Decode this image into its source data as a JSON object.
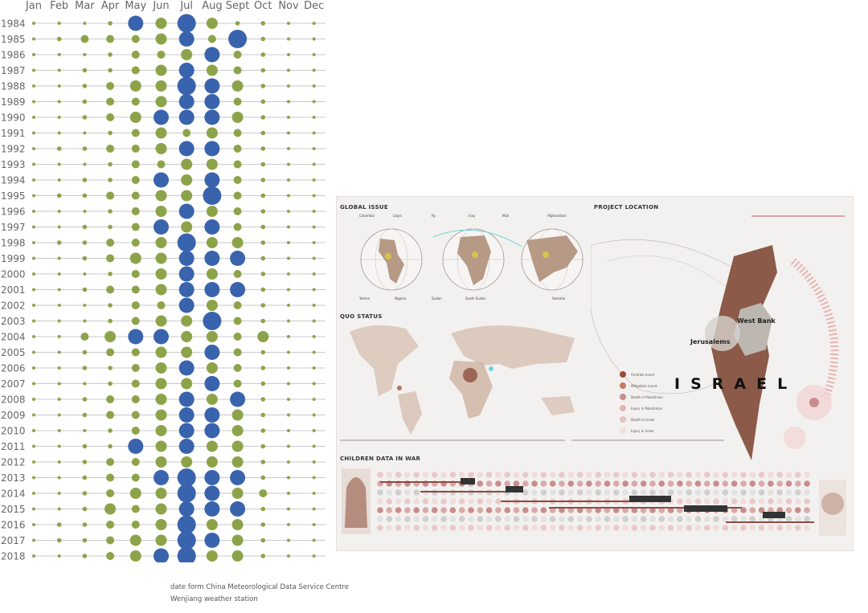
{
  "chart_data": {
    "type": "scatter",
    "months": [
      "Jan",
      "Feb",
      "Mar",
      "Apr",
      "May",
      "Jun",
      "Jul",
      "Aug",
      "Sept",
      "Oct",
      "Nov",
      "Dec"
    ],
    "years": [
      "1984",
      "1985",
      "1986",
      "1987",
      "1988",
      "1989",
      "1990",
      "1991",
      "1992",
      "1993",
      "1994",
      "1995",
      "1996",
      "1997",
      "1998",
      "1999",
      "2000",
      "2001",
      "2002",
      "2003",
      "2004",
      "2005",
      "2006",
      "2007",
      "2008",
      "2009",
      "2010",
      "2011",
      "2012",
      "2013",
      "2014",
      "2015",
      "2016",
      "2017",
      "2018"
    ],
    "levels": [
      [
        0,
        0,
        0,
        1,
        4,
        3,
        5,
        3,
        1,
        1,
        0,
        0
      ],
      [
        0,
        1,
        2,
        2,
        2,
        3,
        4,
        2,
        5,
        1,
        0,
        0
      ],
      [
        0,
        0,
        0,
        1,
        2,
        2,
        3,
        4,
        2,
        1,
        0,
        0
      ],
      [
        0,
        0,
        1,
        1,
        2,
        3,
        4,
        3,
        2,
        1,
        0,
        0
      ],
      [
        0,
        0,
        1,
        2,
        3,
        3,
        5,
        4,
        3,
        1,
        0,
        0
      ],
      [
        0,
        0,
        1,
        2,
        2,
        3,
        4,
        4,
        2,
        1,
        0,
        0
      ],
      [
        0,
        0,
        1,
        2,
        3,
        4,
        4,
        4,
        3,
        1,
        0,
        0
      ],
      [
        0,
        0,
        0,
        1,
        2,
        3,
        2,
        3,
        2,
        1,
        0,
        0
      ],
      [
        0,
        1,
        1,
        2,
        2,
        3,
        4,
        4,
        2,
        1,
        0,
        0
      ],
      [
        0,
        0,
        0,
        1,
        2,
        2,
        3,
        3,
        2,
        1,
        0,
        0
      ],
      [
        0,
        0,
        1,
        1,
        2,
        4,
        3,
        4,
        2,
        1,
        0,
        0
      ],
      [
        0,
        1,
        1,
        2,
        2,
        3,
        3,
        5,
        2,
        1,
        0,
        0
      ],
      [
        0,
        0,
        0,
        1,
        2,
        3,
        4,
        3,
        2,
        1,
        0,
        0
      ],
      [
        0,
        0,
        1,
        1,
        2,
        4,
        3,
        4,
        2,
        1,
        0,
        0
      ],
      [
        0,
        1,
        1,
        2,
        2,
        3,
        5,
        3,
        3,
        1,
        0,
        0
      ],
      [
        0,
        0,
        1,
        2,
        3,
        3,
        4,
        4,
        4,
        1,
        0,
        0
      ],
      [
        0,
        0,
        0,
        1,
        2,
        3,
        4,
        3,
        2,
        1,
        0,
        0
      ],
      [
        0,
        0,
        1,
        2,
        2,
        3,
        4,
        4,
        4,
        1,
        0,
        0
      ],
      [
        0,
        0,
        0,
        1,
        2,
        2,
        4,
        3,
        2,
        1,
        0,
        0
      ],
      [
        0,
        0,
        0,
        1,
        2,
        3,
        3,
        5,
        2,
        1,
        0,
        0
      ],
      [
        0,
        0,
        2,
        3,
        4,
        4,
        3,
        3,
        2,
        3,
        0,
        0
      ],
      [
        0,
        0,
        1,
        2,
        2,
        3,
        3,
        4,
        2,
        1,
        0,
        0
      ],
      [
        0,
        0,
        1,
        1,
        2,
        3,
        4,
        3,
        2,
        1,
        0,
        0
      ],
      [
        0,
        0,
        0,
        1,
        2,
        3,
        3,
        4,
        2,
        1,
        0,
        0
      ],
      [
        0,
        0,
        1,
        2,
        2,
        3,
        4,
        3,
        4,
        1,
        0,
        0
      ],
      [
        0,
        0,
        1,
        2,
        2,
        3,
        4,
        4,
        3,
        1,
        0,
        0
      ],
      [
        0,
        0,
        0,
        1,
        2,
        3,
        4,
        4,
        3,
        1,
        0,
        0
      ],
      [
        0,
        0,
        1,
        1,
        4,
        3,
        4,
        3,
        3,
        1,
        0,
        0
      ],
      [
        0,
        0,
        1,
        2,
        2,
        3,
        3,
        3,
        3,
        1,
        0,
        0
      ],
      [
        0,
        0,
        1,
        2,
        2,
        4,
        5,
        4,
        4,
        1,
        0,
        0
      ],
      [
        0,
        0,
        1,
        2,
        3,
        3,
        5,
        4,
        3,
        2,
        0,
        0
      ],
      [
        0,
        0,
        1,
        3,
        2,
        3,
        4,
        4,
        4,
        1,
        0,
        0
      ],
      [
        0,
        1,
        1,
        2,
        2,
        3,
        5,
        3,
        3,
        1,
        0,
        0
      ],
      [
        0,
        1,
        1,
        2,
        3,
        3,
        5,
        4,
        3,
        1,
        0,
        0
      ],
      [
        0,
        0,
        1,
        2,
        3,
        4,
        5,
        3,
        3,
        1,
        0,
        0
      ]
    ],
    "colors": {
      "green": "#8da34a",
      "blue": "#3a63ad",
      "grid": "#b7b7b7"
    }
  },
  "source": {
    "line1": "date form China Meteorological Data Service Centre",
    "line2": "Wenjiang weather station"
  },
  "poster": {
    "global_issue": "GLOBAL ISSUE",
    "project_location": "PROJECT LOCATION",
    "quo_status": "QUO STATUS",
    "children_data": "CHILDREN DATA IN WAR",
    "israel": "ISRAEL",
    "west_bank": "West Bank",
    "jerusalem": "Jerusalems",
    "globe_labels_top": [
      "Colombia",
      "Libya",
      "Ry",
      "Iraq",
      "Mali",
      "Afghanistan"
    ],
    "globe_labels_bottom": [
      "Yemen",
      "Nigeria",
      "Sudan",
      "South Sudan",
      "Somalia"
    ],
    "legend": [
      "Airstrike event",
      "Mitigation event",
      "Death in Palestinian",
      "Injury in Palestinian",
      "Death in Israel",
      "Injury in Israel"
    ]
  }
}
